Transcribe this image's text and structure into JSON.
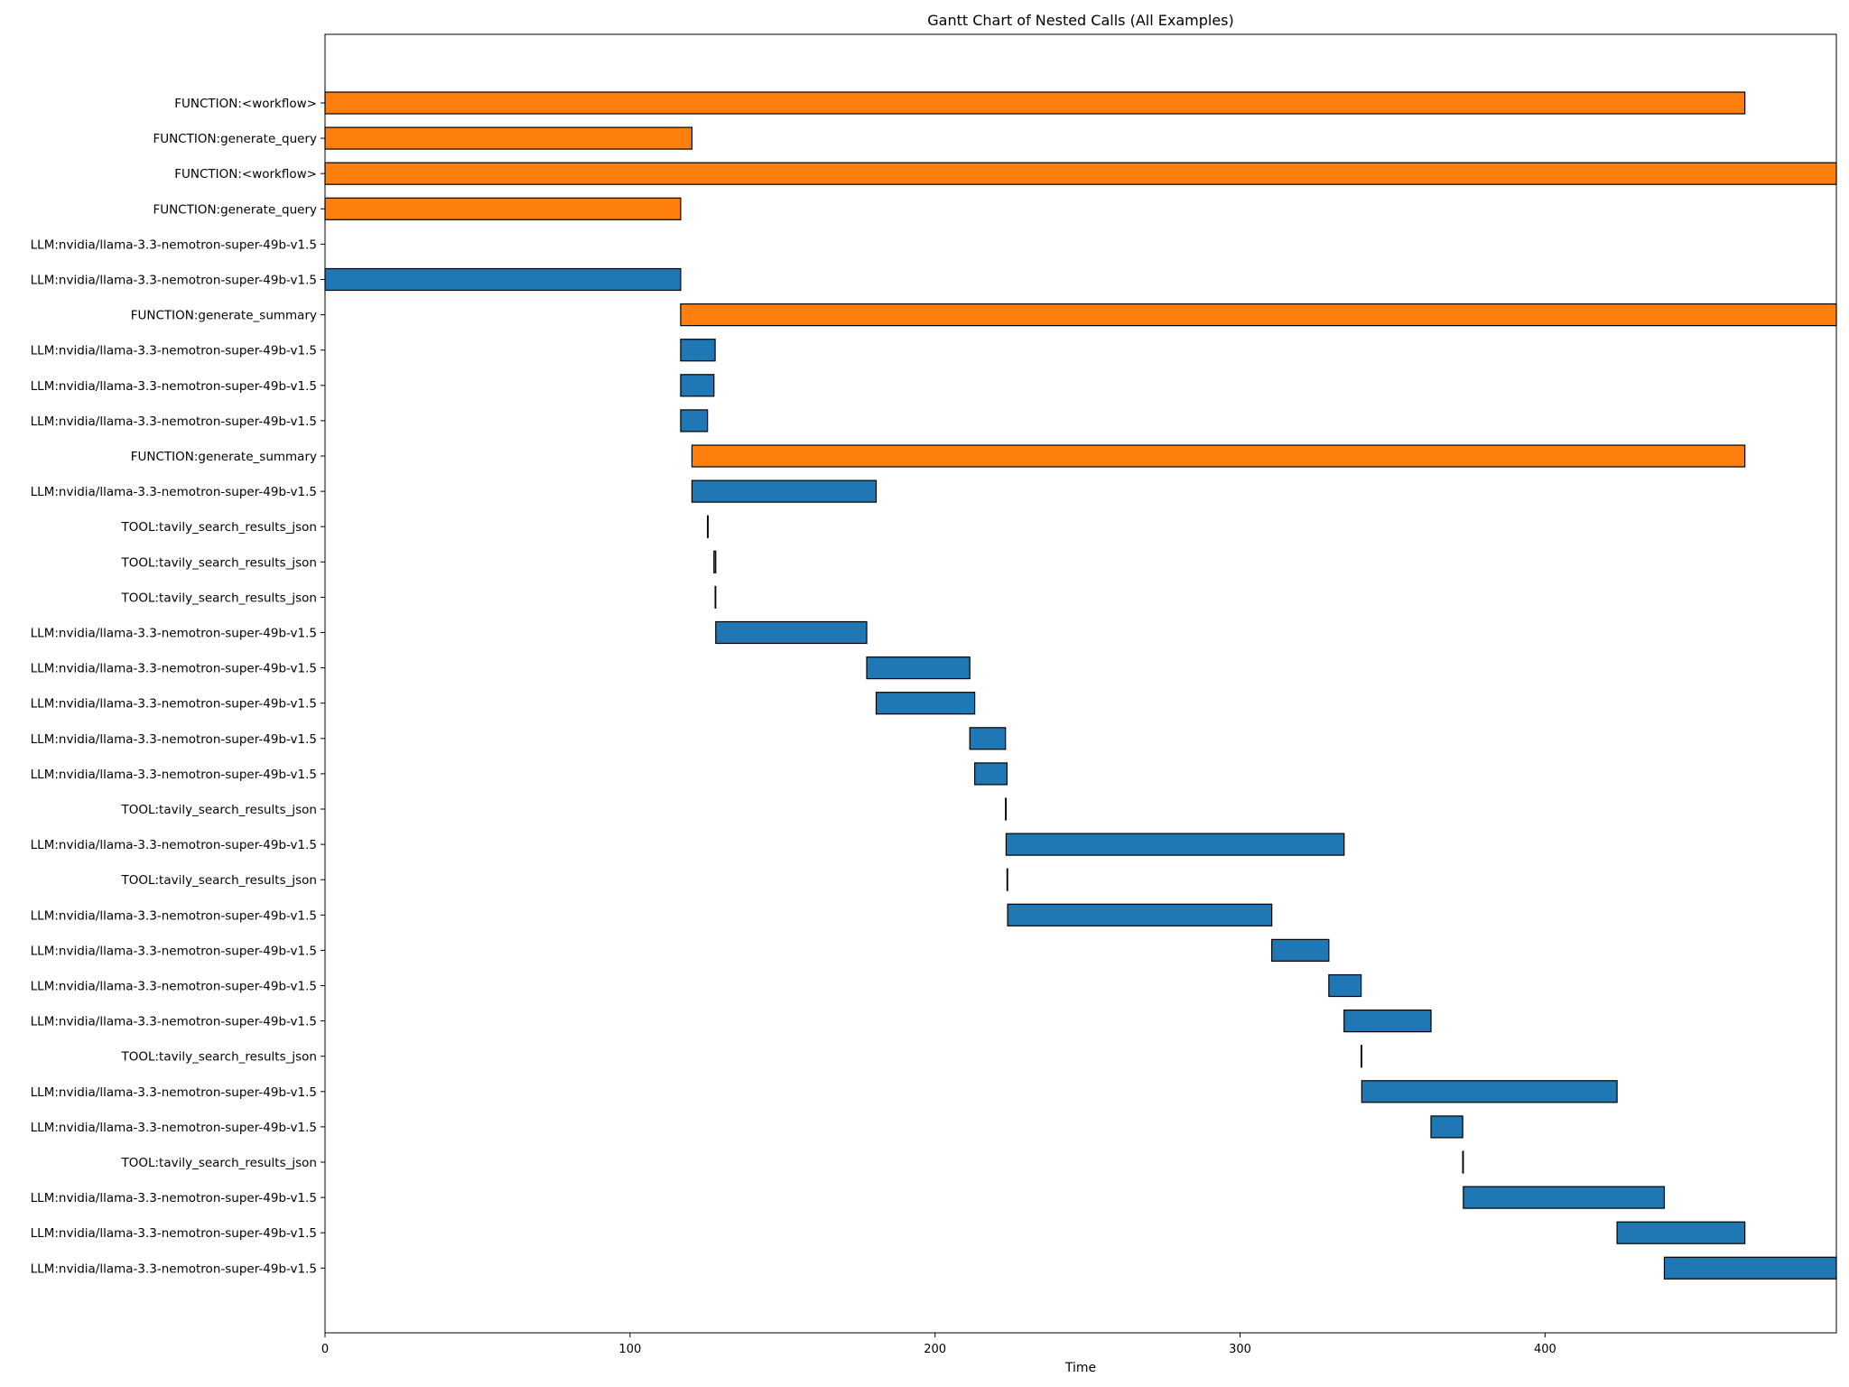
{
  "chart_data": {
    "type": "gantt",
    "title": "Gantt Chart of Nested Calls (All Examples)",
    "xlabel": "Time",
    "xlim": [
      0,
      495.5
    ],
    "xticks": [
      0,
      100,
      200,
      300,
      400
    ],
    "grid": false,
    "legend": "none",
    "colors": {
      "FUNCTION": "#ff7f0e",
      "LLM": "#1f77b4",
      "TOOL": "#1f77b4",
      "edge": "#000000"
    },
    "rows": [
      {
        "label": "FUNCTION:<workflow>",
        "kind": "FUNCTION",
        "start": 0,
        "end": 465.5
      },
      {
        "label": "FUNCTION:generate_query",
        "kind": "FUNCTION",
        "start": 0,
        "end": 120.3
      },
      {
        "label": "FUNCTION:<workflow>",
        "kind": "FUNCTION",
        "start": 0,
        "end": 495.5
      },
      {
        "label": "FUNCTION:generate_query",
        "kind": "FUNCTION",
        "start": 0,
        "end": 116.6
      },
      {
        "label": "LLM:nvidia/llama-3.3-nemotron-super-49b-v1.5",
        "kind": "LLM",
        "start": 0,
        "end": 0
      },
      {
        "label": "LLM:nvidia/llama-3.3-nemotron-super-49b-v1.5",
        "kind": "LLM",
        "start": 0,
        "end": 116.6
      },
      {
        "label": "FUNCTION:generate_summary",
        "kind": "FUNCTION",
        "start": 116.6,
        "end": 495.5
      },
      {
        "label": "LLM:nvidia/llama-3.3-nemotron-super-49b-v1.5",
        "kind": "LLM",
        "start": 116.6,
        "end": 127.9
      },
      {
        "label": "LLM:nvidia/llama-3.3-nemotron-super-49b-v1.5",
        "kind": "LLM",
        "start": 116.6,
        "end": 127.5
      },
      {
        "label": "LLM:nvidia/llama-3.3-nemotron-super-49b-v1.5",
        "kind": "LLM",
        "start": 116.6,
        "end": 125.4
      },
      {
        "label": "FUNCTION:generate_summary",
        "kind": "FUNCTION",
        "start": 120.3,
        "end": 465.5
      },
      {
        "label": "LLM:nvidia/llama-3.3-nemotron-super-49b-v1.5",
        "kind": "LLM",
        "start": 120.3,
        "end": 180.7
      },
      {
        "label": "TOOL:tavily_search_results_json",
        "kind": "TOOL",
        "start": 125.4,
        "end": 125.6
      },
      {
        "label": "TOOL:tavily_search_results_json",
        "kind": "TOOL",
        "start": 127.5,
        "end": 128.1
      },
      {
        "label": "TOOL:tavily_search_results_json",
        "kind": "TOOL",
        "start": 127.9,
        "end": 128.1
      },
      {
        "label": "LLM:nvidia/llama-3.3-nemotron-super-49b-v1.5",
        "kind": "LLM",
        "start": 128.1,
        "end": 177.6
      },
      {
        "label": "LLM:nvidia/llama-3.3-nemotron-super-49b-v1.5",
        "kind": "LLM",
        "start": 177.6,
        "end": 211.4
      },
      {
        "label": "LLM:nvidia/llama-3.3-nemotron-super-49b-v1.5",
        "kind": "LLM",
        "start": 180.7,
        "end": 213.0
      },
      {
        "label": "LLM:nvidia/llama-3.3-nemotron-super-49b-v1.5",
        "kind": "LLM",
        "start": 211.4,
        "end": 223.1
      },
      {
        "label": "LLM:nvidia/llama-3.3-nemotron-super-49b-v1.5",
        "kind": "LLM",
        "start": 213.0,
        "end": 223.6
      },
      {
        "label": "TOOL:tavily_search_results_json",
        "kind": "TOOL",
        "start": 223.1,
        "end": 223.3
      },
      {
        "label": "LLM:nvidia/llama-3.3-nemotron-super-49b-v1.5",
        "kind": "LLM",
        "start": 223.3,
        "end": 334.1
      },
      {
        "label": "TOOL:tavily_search_results_json",
        "kind": "TOOL",
        "start": 223.6,
        "end": 223.8
      },
      {
        "label": "LLM:nvidia/llama-3.3-nemotron-super-49b-v1.5",
        "kind": "LLM",
        "start": 223.8,
        "end": 310.4
      },
      {
        "label": "LLM:nvidia/llama-3.3-nemotron-super-49b-v1.5",
        "kind": "LLM",
        "start": 310.4,
        "end": 329.1
      },
      {
        "label": "LLM:nvidia/llama-3.3-nemotron-super-49b-v1.5",
        "kind": "LLM",
        "start": 329.1,
        "end": 339.7
      },
      {
        "label": "LLM:nvidia/llama-3.3-nemotron-super-49b-v1.5",
        "kind": "LLM",
        "start": 334.1,
        "end": 362.6
      },
      {
        "label": "TOOL:tavily_search_results_json",
        "kind": "TOOL",
        "start": 339.7,
        "end": 339.9
      },
      {
        "label": "LLM:nvidia/llama-3.3-nemotron-super-49b-v1.5",
        "kind": "LLM",
        "start": 339.9,
        "end": 423.6
      },
      {
        "label": "LLM:nvidia/llama-3.3-nemotron-super-49b-v1.5",
        "kind": "LLM",
        "start": 362.6,
        "end": 373.0
      },
      {
        "label": "TOOL:tavily_search_results_json",
        "kind": "TOOL",
        "start": 373.0,
        "end": 373.2
      },
      {
        "label": "LLM:nvidia/llama-3.3-nemotron-super-49b-v1.5",
        "kind": "LLM",
        "start": 373.2,
        "end": 439.1
      },
      {
        "label": "LLM:nvidia/llama-3.3-nemotron-super-49b-v1.5",
        "kind": "LLM",
        "start": 423.6,
        "end": 465.5
      },
      {
        "label": "LLM:nvidia/llama-3.3-nemotron-super-49b-v1.5",
        "kind": "LLM",
        "start": 439.1,
        "end": 495.5
      }
    ]
  }
}
